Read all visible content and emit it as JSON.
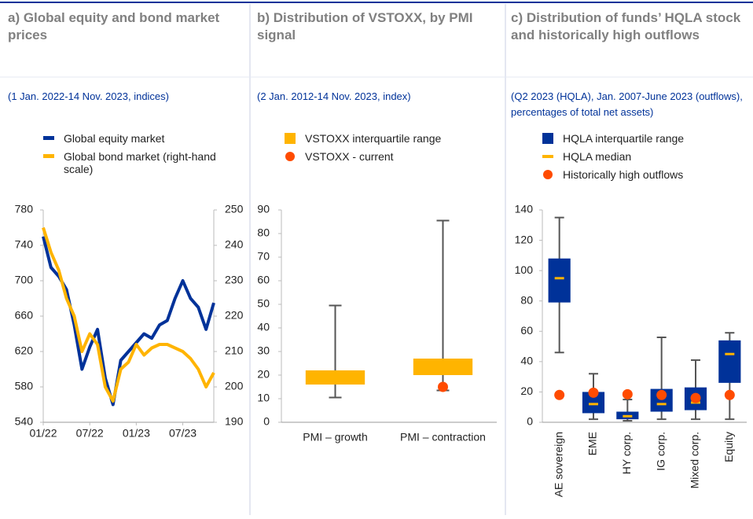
{
  "chart_data": [
    {
      "type": "line",
      "title": "a) Global equity and bond market prices",
      "subtitle": "(1 Jan. 2022-14 Nov. 2023, indices)",
      "x": [
        "01/22",
        "02/22",
        "03/22",
        "04/22",
        "05/22",
        "06/22",
        "07/22",
        "08/22",
        "09/22",
        "10/22",
        "11/22",
        "12/22",
        "01/23",
        "02/23",
        "03/23",
        "04/23",
        "05/23",
        "06/23",
        "07/23",
        "08/23",
        "09/23",
        "10/23",
        "11/23"
      ],
      "xlim": [
        "01/22",
        "11/23"
      ],
      "xticks": [
        "01/22",
        "07/22",
        "01/23",
        "07/23"
      ],
      "ylim": [
        540,
        780
      ],
      "yticks": [
        540,
        580,
        620,
        660,
        700,
        740,
        780
      ],
      "y2lim": [
        190,
        250
      ],
      "y2ticks": [
        190,
        200,
        210,
        220,
        230,
        240,
        250
      ],
      "series": [
        {
          "name": "Global equity market",
          "color": "#003299",
          "values": [
            750,
            715,
            705,
            690,
            650,
            600,
            625,
            645,
            590,
            560,
            610,
            620,
            630,
            640,
            635,
            650,
            655,
            680,
            700,
            680,
            670,
            645,
            675
          ]
        },
        {
          "name": "Global bond market (right-hand scale)",
          "color": "#ffb400",
          "axis": "y2",
          "values": [
            245,
            238,
            233,
            225,
            220,
            210,
            215,
            212,
            200,
            196,
            205,
            207,
            212,
            209,
            211,
            212,
            212,
            211,
            210,
            208,
            205,
            200,
            204
          ]
        }
      ]
    },
    {
      "type": "box",
      "title": "b) Distribution of VSTOXX, by PMI signal",
      "subtitle": "(2 Jan. 2012-14 Nov. 2023, index)",
      "categories": [
        "PMI – growth",
        "PMI – contraction"
      ],
      "ylim": [
        0,
        90
      ],
      "yticks": [
        0,
        10,
        20,
        30,
        40,
        50,
        60,
        70,
        80,
        90
      ],
      "whiskers": {
        "color": "#555555",
        "low": [
          10.5,
          13.5
        ],
        "high": [
          49.5,
          85.5
        ]
      },
      "series": [
        {
          "name": "VSTOXX interquartile range",
          "color": "#ffb400",
          "marker": "box",
          "low": [
            16,
            20
          ],
          "high": [
            22,
            27
          ]
        },
        {
          "name": "VSTOXX - current",
          "color": "#ff4b00",
          "marker": "dot",
          "values": [
            null,
            15
          ]
        }
      ]
    },
    {
      "type": "box",
      "title": "c) Distribution of funds’ HQLA stock and historically high outflows",
      "subtitle": "(Q2 2023 (HQLA), Jan. 2007-June 2023 (outflows), percentages of total net assets)",
      "categories": [
        "AE sovereign",
        "EME",
        "HY corp.",
        "IG corp.",
        "Mixed corp.",
        "Equity"
      ],
      "ylim": [
        0,
        140
      ],
      "yticks": [
        0,
        20,
        40,
        60,
        80,
        100,
        120,
        140
      ],
      "whiskers": {
        "color": "#555555",
        "low": [
          46,
          2,
          1,
          2,
          2,
          2
        ],
        "high": [
          135,
          32,
          15,
          56,
          41,
          59
        ]
      },
      "series": [
        {
          "name": "HQLA interquartile range",
          "color": "#003299",
          "marker": "box",
          "low": [
            79,
            6,
            2,
            7,
            8,
            26
          ],
          "high": [
            108,
            20,
            7,
            22,
            23,
            54
          ]
        },
        {
          "name": "HQLA median",
          "color": "#ffb400",
          "marker": "dash",
          "values": [
            95,
            12,
            4,
            12,
            13,
            45
          ]
        },
        {
          "name": "Historically high outflows",
          "color": "#ff4b00",
          "marker": "dot",
          "values": [
            18,
            19.5,
            18.5,
            18,
            16,
            18
          ]
        }
      ]
    }
  ]
}
